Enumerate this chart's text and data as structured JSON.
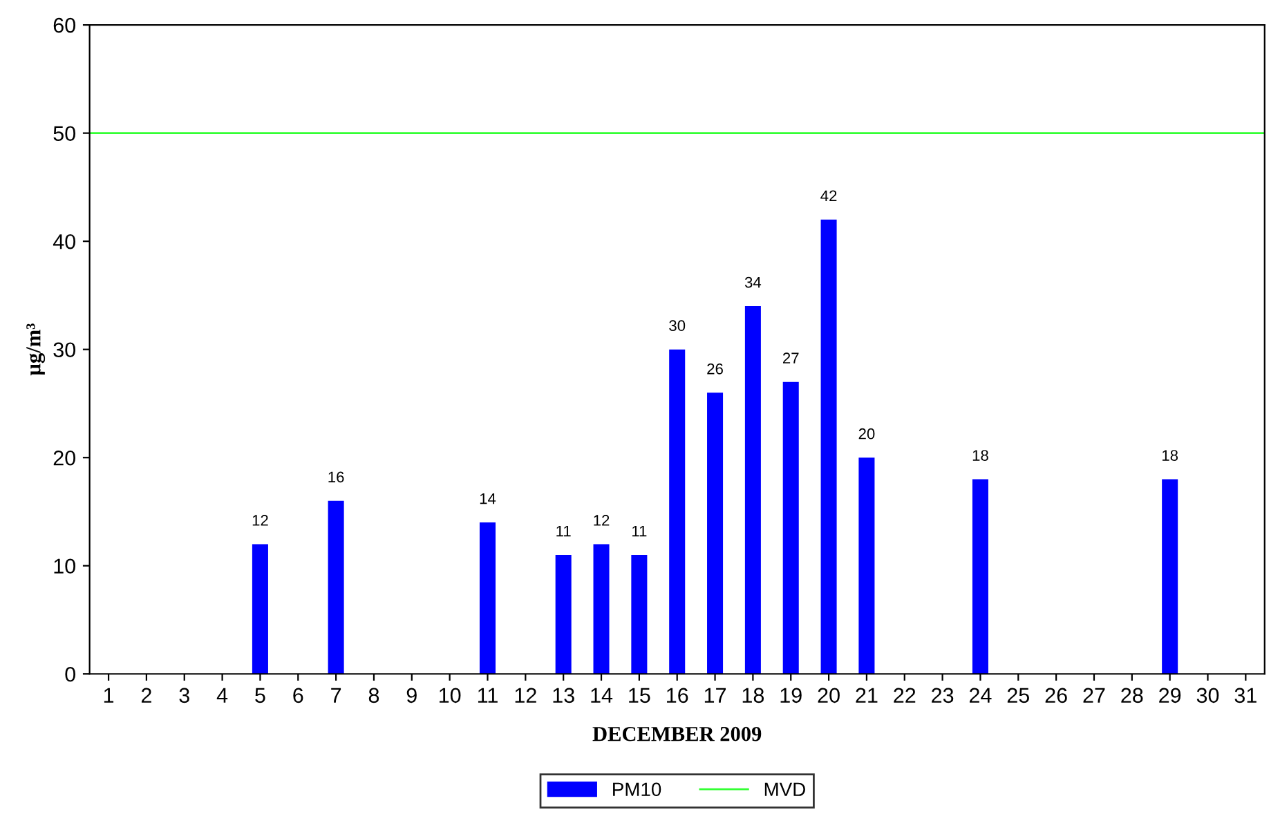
{
  "chart_data": {
    "type": "bar",
    "xlabel": "DECEMBER 2009",
    "ylabel": "µg/m³",
    "categories": [
      "1",
      "2",
      "3",
      "4",
      "5",
      "6",
      "7",
      "8",
      "9",
      "10",
      "11",
      "12",
      "13",
      "14",
      "15",
      "16",
      "17",
      "18",
      "19",
      "20",
      "21",
      "22",
      "23",
      "24",
      "25",
      "26",
      "27",
      "28",
      "29",
      "30",
      "31"
    ],
    "series": [
      {
        "name": "PM10",
        "color": "#0000ff",
        "values": [
          null,
          null,
          null,
          null,
          12,
          null,
          16,
          null,
          null,
          null,
          14,
          null,
          11,
          12,
          11,
          30,
          26,
          34,
          27,
          42,
          20,
          null,
          null,
          18,
          null,
          null,
          null,
          null,
          18,
          null,
          null
        ]
      }
    ],
    "ref_lines": [
      {
        "axis": "y",
        "value": 50,
        "label": "MVD",
        "color": "#33ff33",
        "line_style": "solid"
      }
    ],
    "ylim": [
      0,
      60
    ],
    "yticks": [
      0,
      10,
      20,
      30,
      40,
      50,
      60
    ],
    "data_labels": true,
    "grid": false,
    "legend": "bottom"
  }
}
